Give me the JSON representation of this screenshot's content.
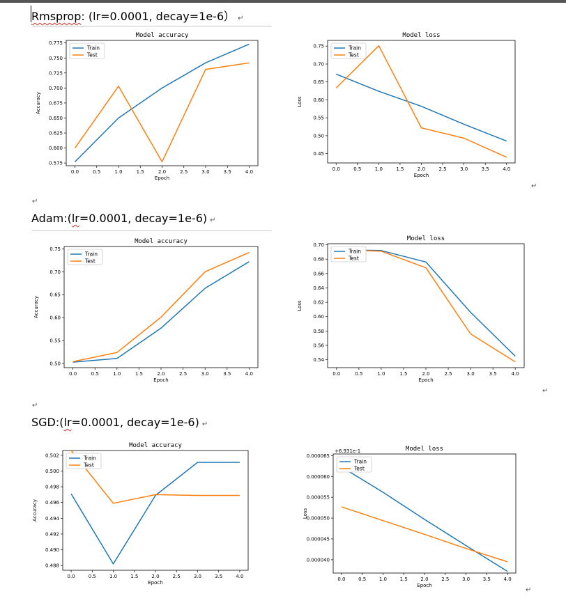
{
  "sections": [
    {
      "heading": {
        "pre": "",
        "squiggle": "Rmsprop",
        "post": ": (lr=0.0001, decay=1e-6）",
        "mark": "↵"
      }
    },
    {
      "heading": {
        "pre": "Adam:(",
        "squiggle": "lr",
        "post": "=0.0001, decay=1e-6)",
        "mark": "↵"
      }
    },
    {
      "heading": {
        "pre": "SGD:(",
        "squiggle": "lr",
        "post": "=0.0001, decay=1e-6)",
        "mark": "↵"
      }
    }
  ],
  "marks": {
    "m1": "↵",
    "m2": "↵",
    "m3": "↵",
    "m4": "↵",
    "m5": "↵"
  },
  "colors": {
    "train": "#1f77b4",
    "test": "#ff7f0e"
  },
  "chart_data": [
    {
      "id": "rms-acc",
      "type": "line",
      "title": "Model accuracy",
      "xlabel": "Epoch",
      "ylabel": "Accuracy",
      "x": [
        0,
        1,
        2,
        3,
        4
      ],
      "xlim": [
        -0.2,
        4.2
      ],
      "ylim": [
        0.5705,
        0.7793
      ],
      "xticks": [
        "0.0",
        "0.5",
        "1.0",
        "1.5",
        "2.0",
        "2.5",
        "3.0",
        "3.5",
        "4.0"
      ],
      "yticks": [
        "0.575",
        "0.600",
        "0.625",
        "0.650",
        "0.675",
        "0.700",
        "0.725",
        "0.750",
        "0.775"
      ],
      "legend": "top-left",
      "series": [
        {
          "name": "Train",
          "values": [
            0.577,
            0.65,
            0.7,
            0.742,
            0.773
          ]
        },
        {
          "name": "Test",
          "values": [
            0.6,
            0.703,
            0.577,
            0.731,
            0.742
          ]
        }
      ]
    },
    {
      "id": "rms-loss",
      "type": "line",
      "title": "Model loss",
      "xlabel": "Epoch",
      "ylabel": "Loss",
      "x": [
        0,
        1,
        2,
        3,
        4
      ],
      "xlim": [
        -0.2,
        4.2
      ],
      "ylim": [
        0.424,
        0.766
      ],
      "xticks": [
        "0.0",
        "0.5",
        "1.0",
        "1.5",
        "2.0",
        "2.5",
        "3.0",
        "3.5",
        "4.0"
      ],
      "yticks": [
        "0.45",
        "0.50",
        "0.55",
        "0.60",
        "0.65",
        "0.70",
        "0.75"
      ],
      "legend": "top-left",
      "series": [
        {
          "name": "Train",
          "values": [
            0.672,
            0.624,
            0.582,
            0.532,
            0.485
          ]
        },
        {
          "name": "Test",
          "values": [
            0.633,
            0.751,
            0.522,
            0.493,
            0.44
          ]
        }
      ]
    },
    {
      "id": "adam-acc",
      "type": "line",
      "title": "Model accuracy",
      "xlabel": "Epoch",
      "ylabel": "Accuracy",
      "x": [
        0,
        1,
        2,
        3,
        4
      ],
      "xlim": [
        -0.2,
        4.2
      ],
      "ylim": [
        0.491,
        0.755
      ],
      "xticks": [
        "0.0",
        "0.5",
        "1.0",
        "1.5",
        "2.0",
        "2.5",
        "3.0",
        "3.5",
        "4.0"
      ],
      "yticks": [
        "0.50",
        "0.55",
        "0.60",
        "0.65",
        "0.70",
        "0.75"
      ],
      "legend": "top-left",
      "series": [
        {
          "name": "Train",
          "values": [
            0.503,
            0.511,
            0.577,
            0.664,
            0.722
          ]
        },
        {
          "name": "Test",
          "values": [
            0.504,
            0.524,
            0.601,
            0.7,
            0.742
          ]
        }
      ]
    },
    {
      "id": "adam-loss",
      "type": "line",
      "title": "Model loss",
      "xlabel": "Epoch",
      "ylabel": "Loss",
      "x": [
        0,
        1,
        2,
        3,
        4
      ],
      "xlim": [
        -0.2,
        4.2
      ],
      "ylim": [
        0.529,
        0.7015
      ],
      "xticks": [
        "0.0",
        "0.5",
        "1.0",
        "1.5",
        "2.0",
        "2.5",
        "3.0",
        "3.5",
        "4.0"
      ],
      "yticks": [
        "0.54",
        "0.56",
        "0.58",
        "0.60",
        "0.62",
        "0.64",
        "0.66",
        "0.68",
        "0.70"
      ],
      "legend": "top-left",
      "series": [
        {
          "name": "Train",
          "values": [
            0.693,
            0.692,
            0.676,
            0.606,
            0.545
          ]
        },
        {
          "name": "Test",
          "values": [
            0.693,
            0.691,
            0.668,
            0.576,
            0.537
          ]
        }
      ]
    },
    {
      "id": "sgd-acc",
      "type": "line",
      "title": "Model accuracy",
      "xlabel": "Epoch",
      "ylabel": "Accuracy",
      "x": [
        0,
        1,
        2,
        3,
        4
      ],
      "xlim": [
        -0.2,
        4.2
      ],
      "ylim": [
        0.4874,
        0.5026
      ],
      "xticks": [
        "0.0",
        "0.5",
        "1.0",
        "1.5",
        "2.0",
        "2.5",
        "3.0",
        "3.5",
        "4.0"
      ],
      "yticks": [
        "0.488",
        "0.490",
        "0.492",
        "0.494",
        "0.496",
        "0.498",
        "0.500",
        "0.502"
      ],
      "legend": "top-left",
      "series": [
        {
          "name": "Train",
          "values": [
            0.4971,
            0.4882,
            0.4969,
            0.5011,
            0.5011
          ]
        },
        {
          "name": "Test",
          "values": [
            0.5026,
            0.4959,
            0.497,
            0.4969,
            0.4969
          ]
        }
      ]
    },
    {
      "id": "sgd-loss",
      "type": "line",
      "title": "Model loss",
      "xlabel": "Epoch",
      "ylabel": "Loss",
      "offset_text": "+6.931e-1",
      "x": [
        0,
        1,
        2,
        3,
        4
      ],
      "xlim": [
        -0.2,
        4.2
      ],
      "ylim": [
        3.68e-05,
        6.54e-05
      ],
      "xticks": [
        "0.0",
        "0.5",
        "1.0",
        "1.5",
        "2.0",
        "2.5",
        "3.0",
        "3.5",
        "4.0"
      ],
      "yticks": [
        "0.000040",
        "0.000045",
        "0.000050",
        "0.000055",
        "0.000060",
        "0.000065"
      ],
      "ytick_values": [
        4e-05,
        4.5e-05,
        5e-05,
        5.5e-05,
        6e-05,
        6.5e-05
      ],
      "legend": "top-left",
      "series": [
        {
          "name": "Train",
          "values": [
            6.23e-05,
            5.62e-05,
            4.97e-05,
            4.34e-05,
            3.72e-05
          ]
        },
        {
          "name": "Test",
          "values": [
            5.27e-05,
            4.94e-05,
            4.61e-05,
            4.27e-05,
            3.95e-05
          ]
        }
      ]
    }
  ]
}
